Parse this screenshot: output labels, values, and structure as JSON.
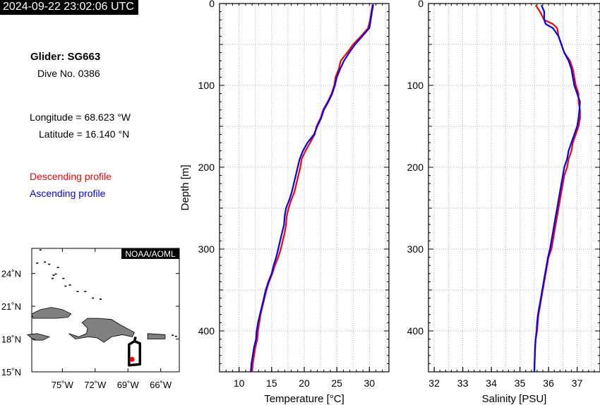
{
  "timestamp": "2024-09-22 23:02:06 UTC",
  "glider": {
    "title": "Glider: SG663",
    "dive": "Dive No. 0386",
    "longitude": "Longitude = 68.623 °W",
    "latitude": "Latitude = 16.140 °N"
  },
  "legend": {
    "descending": "Descending profile",
    "ascending": "Ascending profile",
    "descending_color": "#ff0000",
    "ascending_color": "#0000ff"
  },
  "map": {
    "credit": "NOAA/AOML",
    "lat_labels": [
      "24˚N",
      "21˚N",
      "18˚N",
      "15˚N"
    ],
    "lon_labels": [
      "75˚W",
      "72˚W",
      "69˚W",
      "66˚W"
    ],
    "lat_range": [
      15,
      26.3
    ],
    "lon_range": [
      -77.8,
      -64.3
    ],
    "glider_position": [
      -68.623,
      16.14
    ],
    "track": [
      [
        -68.3,
        18.2
      ],
      [
        -68.4,
        17.8
      ],
      [
        -67.9,
        17.6
      ],
      [
        -67.9,
        15.7
      ],
      [
        -68.9,
        15.6
      ],
      [
        -68.9,
        17.5
      ],
      [
        -68.4,
        17.8
      ]
    ],
    "land_color": "#808080"
  },
  "chart_data": [
    {
      "type": "line",
      "xlabel": "Temperature [°C]",
      "ylabel": "Depth [m]",
      "xlim": [
        7,
        33
      ],
      "ylim": [
        450,
        0
      ],
      "xticks": [
        10,
        15,
        20,
        25,
        30
      ],
      "yticks": [
        0,
        100,
        200,
        300,
        400
      ],
      "grid": true,
      "series": [
        {
          "name": "Descending profile",
          "color": "#ff0000",
          "depth": [
            1,
            10,
            20,
            30,
            40,
            50,
            60,
            70,
            80,
            90,
            100,
            110,
            120,
            130,
            140,
            150,
            160,
            170,
            180,
            190,
            200,
            210,
            220,
            230,
            240,
            250,
            260,
            270,
            280,
            290,
            300,
            310,
            320,
            330,
            340,
            350,
            360,
            370,
            380,
            390,
            400,
            410,
            420,
            430,
            440,
            450
          ],
          "values": [
            30.5,
            30.3,
            30.1,
            29.8,
            28.7,
            27.5,
            26.6,
            25.6,
            25.3,
            24.8,
            24.6,
            24.2,
            23.6,
            22.9,
            22.5,
            21.9,
            21.6,
            20.9,
            20.2,
            19.6,
            19.4,
            19.1,
            18.8,
            18.5,
            18.0,
            17.6,
            17.3,
            17.2,
            17.0,
            16.7,
            16.4,
            16.0,
            15.5,
            15.1,
            14.6,
            14.2,
            13.9,
            13.6,
            13.3,
            13.1,
            12.9,
            12.8,
            12.5,
            12.3,
            12.1,
            12.0
          ]
        },
        {
          "name": "Ascending profile",
          "color": "#0000ff",
          "depth": [
            1,
            10,
            20,
            30,
            40,
            50,
            60,
            70,
            80,
            90,
            100,
            110,
            120,
            130,
            140,
            150,
            160,
            170,
            180,
            190,
            200,
            210,
            220,
            230,
            240,
            250,
            260,
            270,
            280,
            290,
            300,
            310,
            320,
            330,
            340,
            350,
            360,
            370,
            380,
            390,
            400,
            410,
            420,
            430,
            440,
            450
          ],
          "values": [
            30.6,
            30.4,
            30.2,
            30.0,
            28.9,
            27.8,
            26.9,
            26.1,
            25.5,
            25.0,
            24.7,
            24.3,
            23.7,
            23.0,
            22.6,
            22.0,
            21.5,
            20.5,
            19.8,
            19.3,
            19.0,
            18.7,
            18.4,
            18.1,
            17.7,
            17.2,
            17.0,
            16.9,
            16.6,
            16.3,
            16.0,
            15.7,
            15.3,
            15.0,
            14.5,
            14.1,
            13.8,
            13.5,
            13.2,
            12.9,
            12.7,
            12.6,
            12.3,
            12.1,
            11.9,
            11.8
          ]
        }
      ]
    },
    {
      "type": "line",
      "xlabel": "Salinity [PSU]",
      "ylabel": "",
      "xlim": [
        31.8,
        37.8
      ],
      "ylim": [
        450,
        0
      ],
      "xticks": [
        32,
        33,
        34,
        35,
        36,
        37
      ],
      "yticks": [
        0,
        100,
        200,
        300,
        400
      ],
      "grid": true,
      "series": [
        {
          "name": "Descending profile",
          "color": "#ff0000",
          "depth": [
            2,
            10,
            20,
            25,
            30,
            40,
            50,
            60,
            70,
            80,
            90,
            100,
            110,
            120,
            130,
            140,
            150,
            160,
            170,
            180,
            190,
            200,
            210,
            220,
            230,
            240,
            250,
            260,
            270,
            280,
            290,
            300,
            310,
            320,
            330,
            340,
            350,
            360,
            370,
            380,
            390,
            400,
            410,
            420,
            430,
            440,
            450
          ],
          "values": [
            35.55,
            35.7,
            35.85,
            36.15,
            36.3,
            36.35,
            36.45,
            36.55,
            36.75,
            36.85,
            36.9,
            36.95,
            37.05,
            37.05,
            37.1,
            37.1,
            37.05,
            36.95,
            36.85,
            36.8,
            36.7,
            36.65,
            36.55,
            36.5,
            36.45,
            36.4,
            36.35,
            36.3,
            36.25,
            36.2,
            36.15,
            36.1,
            36.0,
            35.95,
            35.9,
            35.85,
            35.8,
            35.75,
            35.7,
            35.65,
            35.62,
            35.6,
            35.55,
            35.53,
            35.52,
            35.51,
            35.5
          ]
        },
        {
          "name": "Ascending profile",
          "color": "#0000ff",
          "depth": [
            2,
            10,
            20,
            25,
            30,
            40,
            50,
            60,
            70,
            80,
            90,
            100,
            110,
            120,
            130,
            140,
            150,
            160,
            170,
            180,
            190,
            200,
            210,
            220,
            230,
            240,
            250,
            260,
            270,
            280,
            290,
            300,
            310,
            320,
            330,
            340,
            350,
            360,
            370,
            380,
            390,
            400,
            410,
            420,
            430,
            440,
            450
          ],
          "values": [
            35.75,
            35.85,
            35.85,
            35.9,
            36.15,
            36.35,
            36.45,
            36.55,
            36.7,
            36.8,
            36.85,
            36.9,
            37.0,
            37.1,
            37.08,
            37.05,
            37.0,
            36.9,
            36.8,
            36.7,
            36.65,
            36.55,
            36.5,
            36.45,
            36.4,
            36.35,
            36.3,
            36.25,
            36.2,
            36.15,
            36.1,
            36.05,
            35.98,
            35.93,
            35.88,
            35.83,
            35.78,
            35.73,
            35.68,
            35.63,
            35.6,
            35.58,
            35.55,
            35.53,
            35.52,
            35.51,
            35.5
          ]
        }
      ]
    }
  ]
}
